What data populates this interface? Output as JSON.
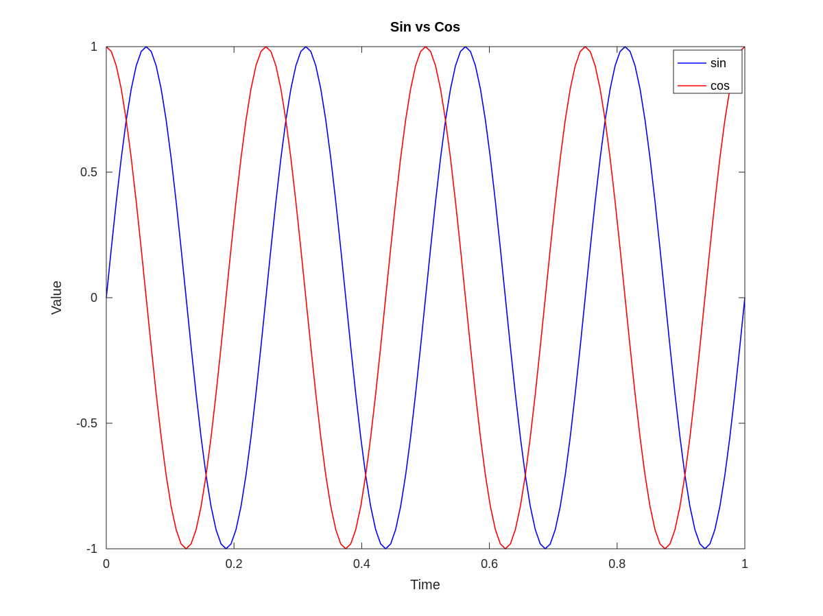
{
  "chart_data": {
    "type": "line",
    "title": "Sin vs Cos",
    "xlabel": "Time",
    "ylabel": "Value",
    "xlim": [
      0,
      1
    ],
    "ylim": [
      -1,
      1
    ],
    "xticks": [
      0,
      0.2,
      0.4,
      0.6,
      0.8,
      1
    ],
    "xtick_labels": [
      "0",
      "0.2",
      "0.4",
      "0.6",
      "0.8",
      "1"
    ],
    "yticks": [
      -1,
      -0.5,
      0,
      0.5,
      1
    ],
    "ytick_labels": [
      "-1",
      "-0.5",
      "0",
      "0.5",
      "1"
    ],
    "grid": false,
    "legend_position": "top-right",
    "series": [
      {
        "name": "sin",
        "color": "#0000ff",
        "function": "sin(2*pi*4*t)",
        "x_start": 0,
        "x_end": 1,
        "samples": 129
      },
      {
        "name": "cos",
        "color": "#ff0000",
        "function": "cos(2*pi*4*t)",
        "x_start": 0,
        "x_end": 1,
        "samples": 129
      }
    ]
  }
}
